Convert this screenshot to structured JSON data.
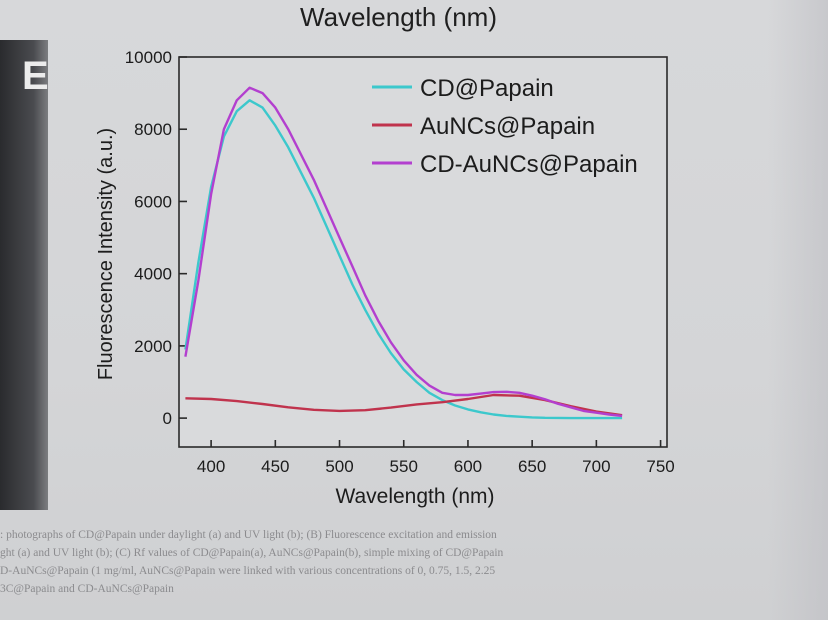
{
  "top_fragment": "Wavelength (nm)",
  "panel_label": "E",
  "chart_data": {
    "type": "line",
    "xlabel": "Wavelength (nm)",
    "ylabel": "Fluorescence Intensity (a.u.)",
    "xlim": [
      375,
      755
    ],
    "ylim": [
      -800,
      10000
    ],
    "xticks": [
      400,
      450,
      500,
      550,
      600,
      650,
      700,
      750
    ],
    "yticks": [
      0,
      2000,
      4000,
      6000,
      8000,
      10000
    ],
    "legend_position": "top-right",
    "grid": false,
    "series": [
      {
        "name": "CD@Papain",
        "color": "#3cc8cc",
        "x": [
          380,
          390,
          400,
          410,
          420,
          430,
          440,
          450,
          460,
          470,
          480,
          490,
          500,
          510,
          520,
          530,
          540,
          550,
          560,
          570,
          580,
          590,
          600,
          610,
          620,
          630,
          640,
          650,
          660,
          670,
          680,
          690,
          700,
          710,
          720
        ],
        "y": [
          1900,
          4300,
          6400,
          7800,
          8500,
          8800,
          8600,
          8100,
          7500,
          6800,
          6100,
          5300,
          4500,
          3700,
          3000,
          2350,
          1800,
          1350,
          1000,
          700,
          500,
          350,
          240,
          160,
          100,
          60,
          40,
          20,
          10,
          5,
          0,
          0,
          0,
          0,
          0
        ]
      },
      {
        "name": "AuNCs@Papain",
        "color": "#c0334d",
        "x": [
          380,
          400,
          420,
          440,
          460,
          480,
          500,
          520,
          540,
          560,
          580,
          600,
          620,
          640,
          660,
          680,
          700,
          720
        ],
        "y": [
          550,
          530,
          470,
          390,
          300,
          230,
          200,
          220,
          290,
          380,
          440,
          530,
          640,
          620,
          500,
          330,
          180,
          80
        ]
      },
      {
        "name": "CD-AuNCs@Papain",
        "color": "#b33fcf",
        "x": [
          380,
          390,
          400,
          410,
          420,
          430,
          440,
          450,
          460,
          470,
          480,
          490,
          500,
          510,
          520,
          530,
          540,
          550,
          560,
          570,
          580,
          590,
          600,
          610,
          620,
          630,
          640,
          650,
          660,
          670,
          680,
          690,
          700,
          710,
          720
        ],
        "y": [
          1700,
          3800,
          6200,
          8000,
          8800,
          9150,
          9000,
          8600,
          8000,
          7300,
          6600,
          5800,
          5000,
          4200,
          3400,
          2700,
          2100,
          1600,
          1200,
          900,
          700,
          640,
          640,
          680,
          720,
          730,
          700,
          620,
          520,
          400,
          300,
          200,
          150,
          100,
          60
        ]
      }
    ]
  },
  "caption_lines": [
    ": photographs of CD@Papain under daylight (a) and UV light (b); (B) Fluorescence excitation and emission",
    "ght (a) and UV light (b); (C) Rf values of CD@Papain(a), AuNCs@Papain(b), simple mixing of CD@Papain",
    "D-AuNCs@Papain (1 mg/ml, AuNCs@Papain were linked with various concentrations of 0, 0.75, 1.5, 2.25",
    "3C@Papain and CD-AuNCs@Papain"
  ]
}
